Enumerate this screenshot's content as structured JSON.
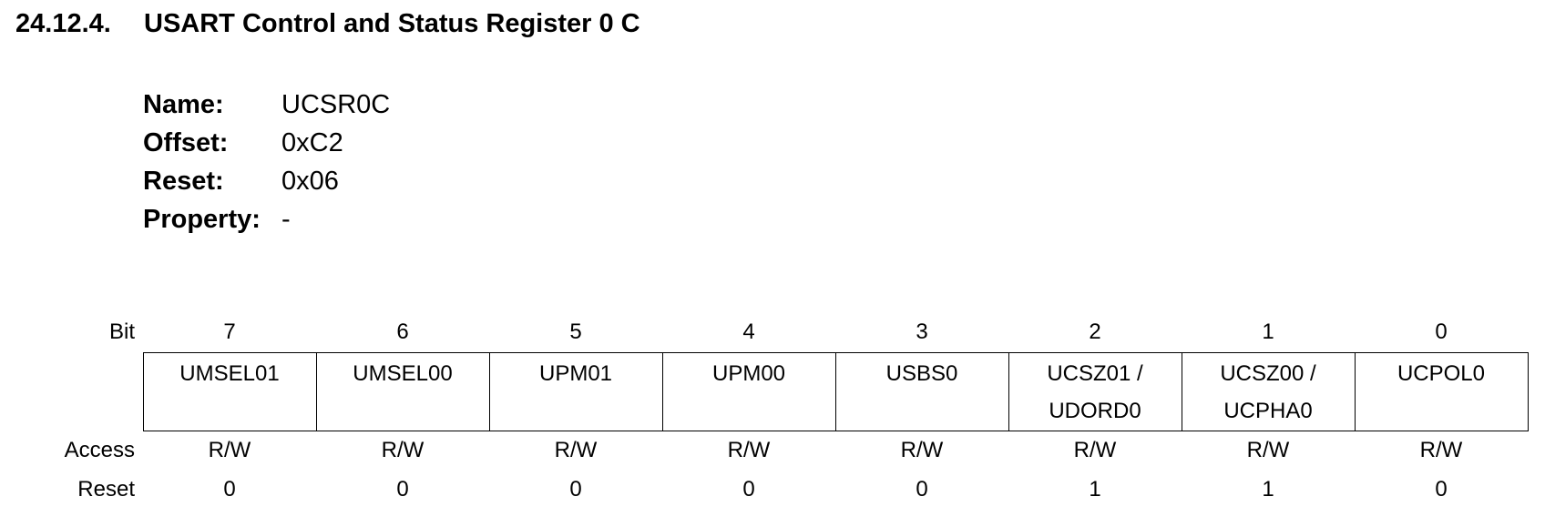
{
  "heading": {
    "number": "24.12.4.",
    "title": "USART Control and Status Register 0 C"
  },
  "properties": [
    {
      "label": "Name:",
      "value": "UCSR0C"
    },
    {
      "label": "Offset:",
      "value": "0xC2"
    },
    {
      "label": "Reset:",
      "value": "0x06"
    },
    {
      "label": "Property:",
      "value": "-"
    }
  ],
  "register": {
    "row_labels": {
      "bit": "Bit",
      "access": "Access",
      "reset": "Reset"
    },
    "bits": [
      {
        "bit": "7",
        "name": "UMSEL01",
        "name2": "",
        "access": "R/W",
        "reset": "0"
      },
      {
        "bit": "6",
        "name": "UMSEL00",
        "name2": "",
        "access": "R/W",
        "reset": "0"
      },
      {
        "bit": "5",
        "name": "UPM01",
        "name2": "",
        "access": "R/W",
        "reset": "0"
      },
      {
        "bit": "4",
        "name": "UPM00",
        "name2": "",
        "access": "R/W",
        "reset": "0"
      },
      {
        "bit": "3",
        "name": "USBS0",
        "name2": "",
        "access": "R/W",
        "reset": "0"
      },
      {
        "bit": "2",
        "name": "UCSZ01 /",
        "name2": "UDORD0",
        "access": "R/W",
        "reset": "1"
      },
      {
        "bit": "1",
        "name": "UCSZ00 /",
        "name2": "UCPHA0",
        "access": "R/W",
        "reset": "1"
      },
      {
        "bit": "0",
        "name": "UCPOL0",
        "name2": "",
        "access": "R/W",
        "reset": "0"
      }
    ]
  }
}
